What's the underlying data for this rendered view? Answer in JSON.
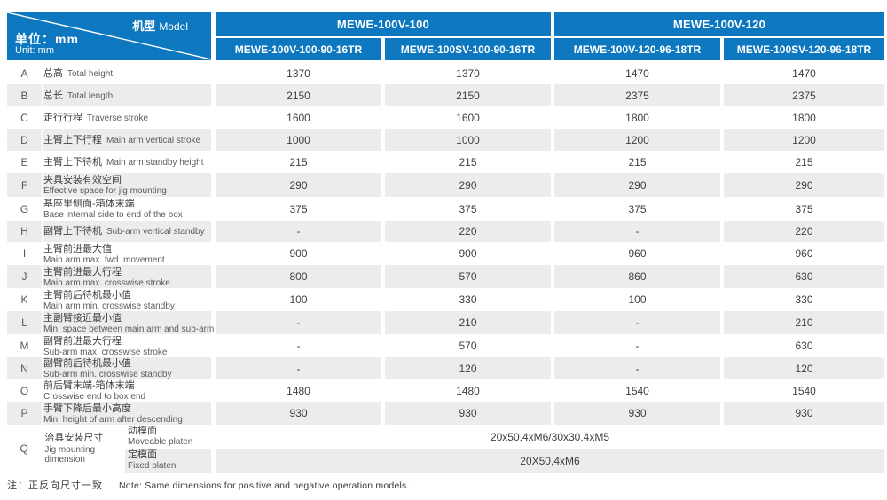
{
  "colors": {
    "header_blue": "#0d78c0",
    "row_alt_gray": "#ececec",
    "header_text": "#ffffff",
    "body_text": "#3e3e3e"
  },
  "corner": {
    "model_zh": "机型",
    "model_en": "Model",
    "unit_zh": "单位：mm",
    "unit_en": "Unit: mm"
  },
  "table": {
    "groups": [
      {
        "label": "MEWE-100V-100",
        "models": [
          "MEWE-100V-100-90-16TR",
          "MEWE-100SV-100-90-16TR"
        ]
      },
      {
        "label": "MEWE-100V-120",
        "models": [
          "MEWE-100V-120-96-18TR",
          "MEWE-100SV-120-96-18TR"
        ]
      }
    ],
    "rows": [
      {
        "letter": "A",
        "zh": "总高",
        "en": "Total height",
        "wrap": false,
        "values": [
          "1370",
          "1370",
          "1470",
          "1470"
        ]
      },
      {
        "letter": "B",
        "zh": "总长",
        "en": "Total length",
        "wrap": false,
        "values": [
          "2150",
          "2150",
          "2375",
          "2375"
        ]
      },
      {
        "letter": "C",
        "zh": "走行行程",
        "en": "Traverse stroke",
        "wrap": false,
        "values": [
          "1600",
          "1600",
          "1800",
          "1800"
        ]
      },
      {
        "letter": "D",
        "zh": "主臂上下行程",
        "en": "Main arm vertical stroke",
        "wrap": false,
        "values": [
          "1000",
          "1000",
          "1200",
          "1200"
        ]
      },
      {
        "letter": "E",
        "zh": "主臂上下待机",
        "en": "Main arm standby height",
        "wrap": false,
        "values": [
          "215",
          "215",
          "215",
          "215"
        ]
      },
      {
        "letter": "F",
        "zh": "夹具安装有效空间",
        "en": "Effective space for jig mounting",
        "wrap": true,
        "values": [
          "290",
          "290",
          "290",
          "290"
        ]
      },
      {
        "letter": "G",
        "zh": "基座里侧面-箱体末端",
        "en": "Base internal side to end of the box",
        "wrap": true,
        "values": [
          "375",
          "375",
          "375",
          "375"
        ]
      },
      {
        "letter": "H",
        "zh": "副臂上下待机",
        "en": "Sub-arm vertical standby",
        "wrap": false,
        "values": [
          "-",
          "220",
          "-",
          "220"
        ]
      },
      {
        "letter": "I",
        "zh": "主臂前进最大值",
        "en": "Main arm max. fwd. movement",
        "wrap": true,
        "values": [
          "900",
          "900",
          "960",
          "960"
        ]
      },
      {
        "letter": "J",
        "zh": "主臂前进最大行程",
        "en": "Main arm max. crosswise stroke",
        "wrap": true,
        "values": [
          "800",
          "570",
          "860",
          "630"
        ]
      },
      {
        "letter": "K",
        "zh": "主臂前后待机最小值",
        "en": "Main arm min. crosswise standby",
        "wrap": true,
        "values": [
          "100",
          "330",
          "100",
          "330"
        ]
      },
      {
        "letter": "L",
        "zh": "主副臂接近最小值",
        "en": "Min. space between main arm and sub-arm",
        "wrap": true,
        "values": [
          "-",
          "210",
          "-",
          "210"
        ]
      },
      {
        "letter": "M",
        "zh": "副臂前进最大行程",
        "en": "Sub-arm max. crosswise stroke",
        "wrap": true,
        "values": [
          "-",
          "570",
          "-",
          "630"
        ]
      },
      {
        "letter": "N",
        "zh": "副臂前后待机最小值",
        "en": "Sub-arm min. crosswise standby",
        "wrap": true,
        "values": [
          "-",
          "120",
          "-",
          "120"
        ]
      },
      {
        "letter": "O",
        "zh": "前后臂末端-箱体末端",
        "en": "Crosswise end to box end",
        "wrap": true,
        "values": [
          "1480",
          "1480",
          "1540",
          "1540"
        ]
      },
      {
        "letter": "P",
        "zh": "手臂下降后最小高度",
        "en": "Min. height of arm after descending",
        "wrap": true,
        "values": [
          "930",
          "930",
          "930",
          "930"
        ]
      }
    ],
    "q_row": {
      "letter": "Q",
      "zh": "治具安装尺寸",
      "en": "Jig mounting dimension",
      "sub_rows": [
        {
          "zh": "动模面",
          "en": "Moveable platen",
          "value": "20x50,4xM6/30x30,4xM5"
        },
        {
          "zh": "定模面",
          "en": "Fixed platen",
          "value": "20X50,4xM6"
        }
      ]
    }
  },
  "note": {
    "zh": "注：正反向尺寸一致",
    "en": "Note: Same dimensions for positive and negative operation models."
  }
}
